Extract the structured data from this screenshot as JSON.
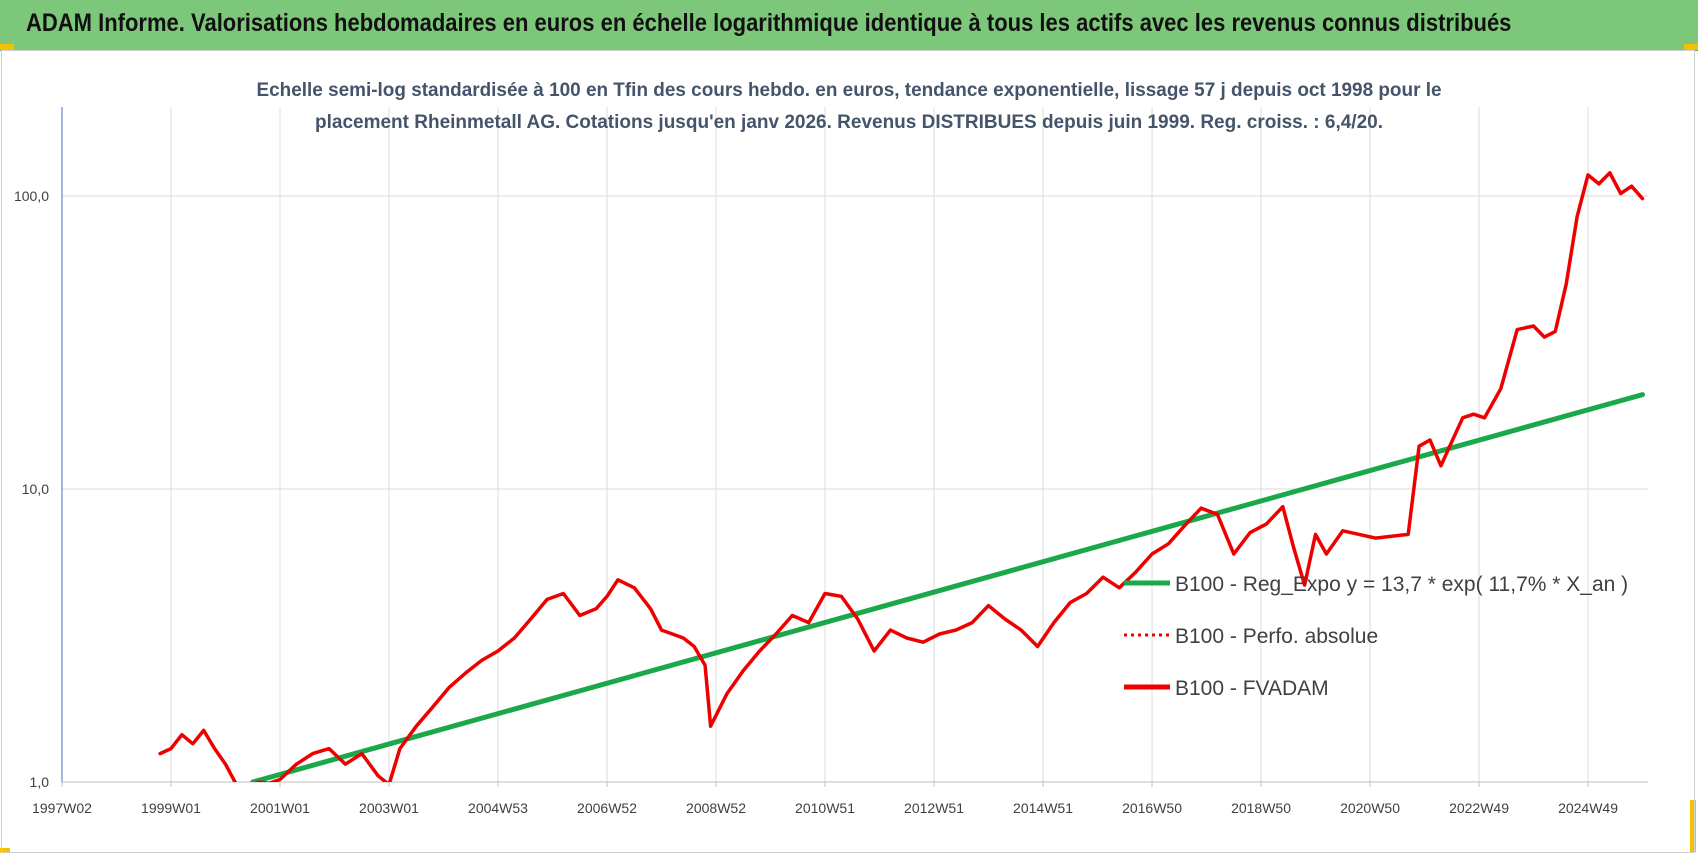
{
  "header": {
    "title": "ADAM Informe. Valorisations hebdomadaires en euros en échelle logarithmique identique à tous les actifs avec les revenus connus distribués"
  },
  "colors": {
    "header_bg": "#7dc77a",
    "corner_accent": "#f2c100",
    "trend_line": "#1aa84a",
    "price_line": "#ee0000",
    "title_text": "#44546a",
    "tick_text": "#404040"
  },
  "chart_data": {
    "type": "line",
    "title_lines": [
      "Echelle semi-log standardisée à 100 en Tfin des cours hebdo. en euros, tendance exponentielle, lissage 57 j depuis oct 1998 pour le",
      "placement Rheinmetall AG. Cotations jusqu'en janv 2026. Revenus DISTRIBUES depuis juin 1999. Reg. croiss. : 6,4/20."
    ],
    "y_scale": "log",
    "ylim": [
      1,
      200
    ],
    "y_ticks": [
      1,
      10,
      100
    ],
    "y_tick_labels": [
      "1,0",
      "10,0",
      "100,0"
    ],
    "x_range": [
      1997.0,
      2026.1
    ],
    "x_ticks": [
      1997.0,
      1999.0,
      2001.0,
      2003.0,
      2005.0,
      2007.0,
      2009.0,
      2011.0,
      2013.0,
      2015.0,
      2017.0,
      2019.0,
      2021.0,
      2023.0,
      2025.0
    ],
    "x_tick_labels": [
      "1997W02",
      "1999W01",
      "2001W01",
      "2003W01",
      "2004W53",
      "2006W52",
      "2008W52",
      "2010W51",
      "2012W51",
      "2014W51",
      "2016W50",
      "2018W50",
      "2020W50",
      "2022W49",
      "2024W49"
    ],
    "grid": true,
    "legend_position": "right-center",
    "series": [
      {
        "name": "B100 - Reg_Expo  y = 13,7 * exp( 11,7% *  X_an )",
        "style": "solid-thick",
        "color": "#1aa84a",
        "x": [
          2000.5,
          2026.0
        ],
        "y": [
          1.0,
          21.0
        ]
      },
      {
        "name": "B100 - Perfo. absolue",
        "style": "dotted",
        "color": "#ee0000",
        "x": [],
        "y": []
      },
      {
        "name": "B100 - FVADAM",
        "style": "solid-thick",
        "color": "#ee0000",
        "x": [
          1998.8,
          1999.0,
          1999.2,
          1999.4,
          1999.6,
          1999.8,
          2000.0,
          2000.2,
          2000.4,
          2000.6,
          2000.8,
          2001.0,
          2001.3,
          2001.6,
          2001.9,
          2002.2,
          2002.5,
          2002.8,
          2003.0,
          2003.2,
          2003.5,
          2003.8,
          2004.1,
          2004.4,
          2004.7,
          2005.0,
          2005.3,
          2005.6,
          2005.9,
          2006.2,
          2006.5,
          2006.8,
          2007.0,
          2007.2,
          2007.5,
          2007.8,
          2008.0,
          2008.2,
          2008.4,
          2008.6,
          2008.8,
          2008.9,
          2009.2,
          2009.5,
          2009.8,
          2010.1,
          2010.4,
          2010.7,
          2011.0,
          2011.3,
          2011.6,
          2011.9,
          2012.2,
          2012.5,
          2012.8,
          2013.1,
          2013.4,
          2013.7,
          2014.0,
          2014.3,
          2014.6,
          2014.9,
          2015.2,
          2015.5,
          2015.8,
          2016.1,
          2016.4,
          2016.7,
          2017.0,
          2017.3,
          2017.6,
          2017.9,
          2018.2,
          2018.5,
          2018.8,
          2019.1,
          2019.4,
          2019.6,
          2019.8,
          2020.0,
          2020.2,
          2020.5,
          2020.8,
          2021.1,
          2021.4,
          2021.7,
          2021.9,
          2022.1,
          2022.3,
          2022.5,
          2022.7,
          2022.9,
          2023.1,
          2023.4,
          2023.7,
          2024.0,
          2024.2,
          2024.4,
          2024.6,
          2024.8,
          2025.0,
          2025.2,
          2025.4,
          2025.6,
          2025.8,
          2026.0
        ],
        "y": [
          1.25,
          1.3,
          1.45,
          1.35,
          1.5,
          1.3,
          1.15,
          0.98,
          0.95,
          1.0,
          0.99,
          1.02,
          1.15,
          1.25,
          1.3,
          1.15,
          1.25,
          1.05,
          0.98,
          1.3,
          1.55,
          1.8,
          2.1,
          2.35,
          2.6,
          2.8,
          3.1,
          3.6,
          4.2,
          4.4,
          3.7,
          3.9,
          4.3,
          4.9,
          4.6,
          3.9,
          3.3,
          3.2,
          3.1,
          2.9,
          2.5,
          1.55,
          2.0,
          2.4,
          2.8,
          3.2,
          3.7,
          3.5,
          4.4,
          4.3,
          3.6,
          2.8,
          3.3,
          3.1,
          3.0,
          3.2,
          3.3,
          3.5,
          4.0,
          3.6,
          3.3,
          2.9,
          3.5,
          4.1,
          4.4,
          5.0,
          4.6,
          5.2,
          6.0,
          6.5,
          7.5,
          8.6,
          8.2,
          6.0,
          7.1,
          7.6,
          8.7,
          6.3,
          4.7,
          7.0,
          6.0,
          7.2,
          7.0,
          6.8,
          6.9,
          7.0,
          14.0,
          14.7,
          12.0,
          14.5,
          17.5,
          18.0,
          17.5,
          22.0,
          35.0,
          36.0,
          33.0,
          34.5,
          50.0,
          85.0,
          118.0,
          110.0,
          120.0,
          102.0,
          108.0,
          98.0
        ]
      }
    ]
  }
}
